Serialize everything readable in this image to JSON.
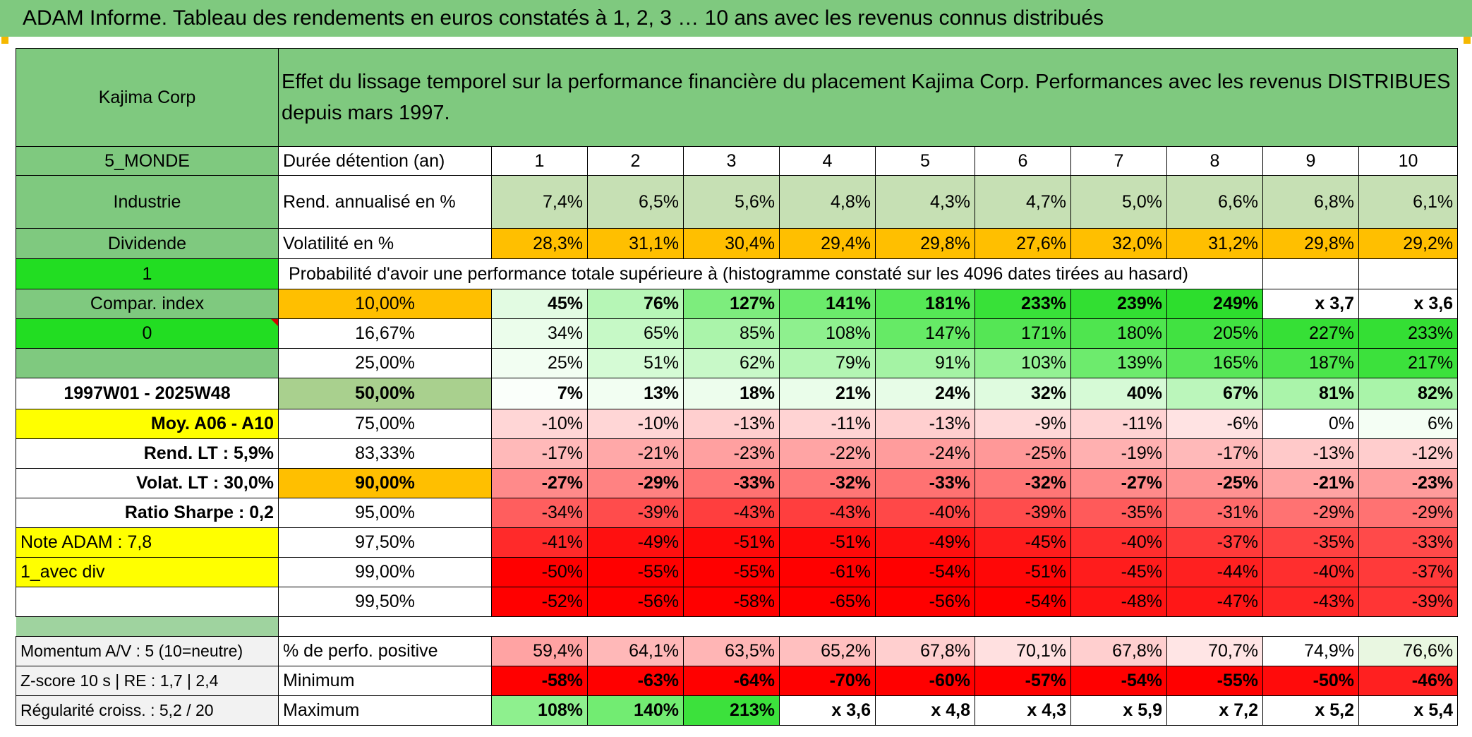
{
  "title": "ADAM Informe. Tableau des rendements en euros constatés à 1, 2, 3 … 10 ans avec les revenus connus distribués",
  "header": {
    "company": "Kajima Corp",
    "description": "Effet du lissage temporel sur la performance financière du placement Kajima Corp. Performances avec les revenus DISTRIBUES depuis mars 1997."
  },
  "left": {
    "region": "5_MONDE",
    "sector": "Industrie",
    "income": "Dividende",
    "flag1": "1",
    "compar": "Compar. index",
    "flag0": "0",
    "period": "1997W01 - 2025W48",
    "moy": "Moy. A06 - A10",
    "rend_lt": "Rend. LT :   5,9%",
    "volat_lt": "Volat. LT :   30,0%",
    "sharpe": "Ratio Sharpe :    0,2",
    "note": "Note ADAM : 7,8",
    "avec_div": "1_avec div"
  },
  "labels": {
    "duree": "Durée détention (an)",
    "rend": "Rend. annualisé en %",
    "vol": "Volatilité en %",
    "prob": "Probabilité d'avoir une performance totale supérieure à (histogramme constaté sur les 4096 dates tirées au hasard)",
    "pos": "% de perfo. positive",
    "min": "Minimum",
    "max": "Maximum"
  },
  "bottom_left": {
    "momentum": "Momentum A/V : 5 (10=neutre)",
    "zscore": "Z-score 10 s | RE : 1,7 | 2,4",
    "regularite": "Régularité croiss. : 5,2 / 20"
  },
  "years": [
    "1",
    "2",
    "3",
    "4",
    "5",
    "6",
    "7",
    "8",
    "9",
    "10"
  ],
  "rend": [
    "7,4%",
    "6,5%",
    "5,6%",
    "4,8%",
    "4,3%",
    "4,7%",
    "5,0%",
    "6,6%",
    "6,8%",
    "6,1%"
  ],
  "vol": [
    "28,3%",
    "31,1%",
    "30,4%",
    "29,4%",
    "29,8%",
    "27,6%",
    "32,0%",
    "31,2%",
    "29,8%",
    "29,2%"
  ],
  "prob_rows": [
    {
      "p": "10,00%",
      "v": [
        "45%",
        "76%",
        "127%",
        "141%",
        "181%",
        "233%",
        "239%",
        "249%",
        "x 3,7",
        "x 3,6"
      ],
      "c": [
        "#e2fbe2",
        "#b6f6b6",
        "#7ded7d",
        "#6beb6b",
        "#55e855",
        "#38e138",
        "#32df32",
        "#2dde2d",
        "#ffffff",
        "#ffffff"
      ]
    },
    {
      "p": "16,67%",
      "v": [
        "34%",
        "65%",
        "85%",
        "108%",
        "147%",
        "171%",
        "180%",
        "205%",
        "227%",
        "233%"
      ],
      "c": [
        "#ebfdeb",
        "#c6f9c6",
        "#aaf4aa",
        "#8ef08e",
        "#66ea66",
        "#55e655",
        "#4fe54f",
        "#41e241",
        "#36e036",
        "#34df34"
      ]
    },
    {
      "p": "25,00%",
      "v": [
        "25%",
        "51%",
        "62%",
        "79%",
        "91%",
        "103%",
        "139%",
        "165%",
        "187%",
        "217%"
      ],
      "c": [
        "#f2fef2",
        "#d5fbd5",
        "#c8f9c8",
        "#b3f6b3",
        "#a4f3a4",
        "#93f193",
        "#6deb6d",
        "#58e758",
        "#4ce54c",
        "#3ce13c"
      ]
    },
    {
      "p": "50,00%",
      "v": [
        "7%",
        "13%",
        "18%",
        "21%",
        "24%",
        "32%",
        "40%",
        "67%",
        "81%",
        "82%"
      ],
      "c": [
        "#fafffa",
        "#f2fef2",
        "#edfded",
        "#eafdea",
        "#e7fce7",
        "#dffbdf",
        "#d6fad6",
        "#bbf6bb",
        "#aaf4aa",
        "#a9f4a9"
      ]
    },
    {
      "p": "75,00%",
      "v": [
        "-10%",
        "-10%",
        "-13%",
        "-11%",
        "-13%",
        "-9%",
        "-11%",
        "-6%",
        "0%",
        "6%"
      ],
      "c": [
        "#ffd6d6",
        "#ffd6d6",
        "#ffcfcf",
        "#ffd3d3",
        "#ffcfcf",
        "#ffd9d9",
        "#ffd3d3",
        "#ffe3e3",
        "#ffffff",
        "#f4fef4"
      ]
    },
    {
      "p": "83,33%",
      "v": [
        "-17%",
        "-21%",
        "-23%",
        "-22%",
        "-24%",
        "-25%",
        "-19%",
        "-17%",
        "-13%",
        "-12%"
      ],
      "c": [
        "#ffb9b9",
        "#ffa8a8",
        "#ffa0a0",
        "#ffa4a4",
        "#ff9c9c",
        "#ff9898",
        "#ffb0b0",
        "#ffb9b9",
        "#ffc9c9",
        "#ffcdcd"
      ]
    },
    {
      "p": "90,00%",
      "v": [
        "-27%",
        "-29%",
        "-33%",
        "-32%",
        "-33%",
        "-32%",
        "-27%",
        "-25%",
        "-21%",
        "-23%"
      ],
      "c": [
        "#ff8a8a",
        "#ff8282",
        "#ff7272",
        "#ff7676",
        "#ff7272",
        "#ff7676",
        "#ff8a8a",
        "#ff9292",
        "#ffa3a3",
        "#ff9b9b"
      ]
    },
    {
      "p": "95,00%",
      "v": [
        "-34%",
        "-39%",
        "-43%",
        "-43%",
        "-40%",
        "-39%",
        "-35%",
        "-31%",
        "-29%",
        "-29%"
      ],
      "c": [
        "#ff5e5e",
        "#ff4c4c",
        "#ff3e3e",
        "#ff3e3e",
        "#ff4848",
        "#ff4c4c",
        "#ff5a5a",
        "#ff6a6a",
        "#ff7272",
        "#ff7272"
      ]
    },
    {
      "p": "97,50%",
      "v": [
        "-41%",
        "-49%",
        "-51%",
        "-51%",
        "-49%",
        "-45%",
        "-40%",
        "-37%",
        "-35%",
        "-33%"
      ],
      "c": [
        "#ff2a2a",
        "#ff1010",
        "#ff0a0a",
        "#ff0a0a",
        "#ff1010",
        "#ff1d1d",
        "#ff2e2e",
        "#ff3a3a",
        "#ff4242",
        "#ff4a4a"
      ]
    },
    {
      "p": "99,00%",
      "v": [
        "-50%",
        "-55%",
        "-55%",
        "-61%",
        "-54%",
        "-51%",
        "-45%",
        "-44%",
        "-40%",
        "-37%"
      ],
      "c": [
        "#ff0000",
        "#ff0000",
        "#ff0000",
        "#ff0000",
        "#ff0000",
        "#ff0707",
        "#ff1c1c",
        "#ff2020",
        "#ff2e2e",
        "#ff3a3a"
      ]
    },
    {
      "p": "99,50%",
      "v": [
        "-52%",
        "-56%",
        "-58%",
        "-65%",
        "-56%",
        "-54%",
        "-48%",
        "-47%",
        "-43%",
        "-39%"
      ],
      "c": [
        "#ff0000",
        "#ff0000",
        "#ff0000",
        "#ff0000",
        "#ff0000",
        "#ff0000",
        "#ff1414",
        "#ff1717",
        "#ff2626",
        "#ff3535"
      ]
    }
  ],
  "pos": [
    "59,4%",
    "64,1%",
    "63,5%",
    "65,2%",
    "67,8%",
    "70,1%",
    "67,8%",
    "70,7%",
    "74,9%",
    "76,6%"
  ],
  "pos_colors": [
    "#ffa3a3",
    "#ffb8b8",
    "#ffb5b5",
    "#ffbfbf",
    "#ffcfcf",
    "#ffe0e0",
    "#ffcfcf",
    "#ffe5e5",
    "#ffffff",
    "#e9f7e1"
  ],
  "min": [
    "-58%",
    "-63%",
    "-64%",
    "-70%",
    "-60%",
    "-57%",
    "-54%",
    "-55%",
    "-50%",
    "-46%"
  ],
  "max": [
    "108%",
    "140%",
    "213%",
    "x 3,6",
    "x 4,8",
    "x 4,3",
    "x 5,9",
    "x 7,2",
    "x 5,2",
    "x 5,4"
  ],
  "max_colors": [
    "#8ef08e",
    "#72ec72",
    "#3ce13c",
    "#ffffff",
    "#ffffff",
    "#ffffff",
    "#ffffff",
    "#ffffff",
    "#ffffff",
    "#ffffff"
  ],
  "colors": {
    "title_bg": "#7fc97f",
    "header_green": "#7fc97f",
    "flag_green": "#22dd22",
    "yellow": "#ffff00",
    "orange": "#ffbf00",
    "red_text": "#d40000",
    "min_red": "#ff0000"
  }
}
